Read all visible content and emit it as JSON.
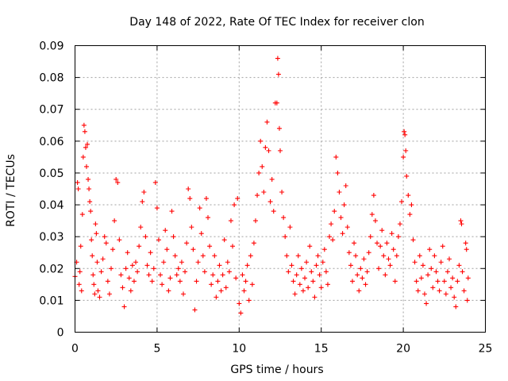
{
  "chart_data": {
    "type": "scatter",
    "title": "Day 148 of 2022, Rate Of TEC Index for receiver clon",
    "xlabel": "GPS time / hours",
    "ylabel": "ROTI / TECUs",
    "xlim": [
      0,
      25
    ],
    "ylim": [
      0,
      0.09
    ],
    "x_ticks": [
      "0",
      "5",
      "10",
      "15",
      "20",
      "25"
    ],
    "y_ticks": [
      "0",
      "0.01",
      "0.02",
      "0.03",
      "0.04",
      "0.05",
      "0.06",
      "0.07",
      "0.08",
      "0.09"
    ],
    "grid": true,
    "legend": "none",
    "marker": "plus",
    "color": "#ff0000",
    "points": [
      [
        0.0,
        0.0175
      ],
      [
        0.1,
        0.022
      ],
      [
        0.15,
        0.047
      ],
      [
        0.2,
        0.045
      ],
      [
        0.25,
        0.015
      ],
      [
        0.3,
        0.019
      ],
      [
        0.35,
        0.027
      ],
      [
        0.4,
        0.013
      ],
      [
        0.45,
        0.037
      ],
      [
        0.5,
        0.055
      ],
      [
        0.55,
        0.065
      ],
      [
        0.6,
        0.063
      ],
      [
        0.65,
        0.058
      ],
      [
        0.7,
        0.052
      ],
      [
        0.75,
        0.059
      ],
      [
        0.8,
        0.048
      ],
      [
        0.85,
        0.045
      ],
      [
        0.9,
        0.041
      ],
      [
        0.95,
        0.038
      ],
      [
        1.0,
        0.029
      ],
      [
        1.05,
        0.024
      ],
      [
        1.1,
        0.018
      ],
      [
        1.15,
        0.015
      ],
      [
        1.2,
        0.012
      ],
      [
        1.25,
        0.034
      ],
      [
        1.3,
        0.031
      ],
      [
        1.35,
        0.022
      ],
      [
        1.4,
        0.013
      ],
      [
        1.5,
        0.011
      ],
      [
        1.6,
        0.019
      ],
      [
        1.7,
        0.023
      ],
      [
        1.8,
        0.03
      ],
      [
        1.9,
        0.028
      ],
      [
        2.0,
        0.016
      ],
      [
        2.1,
        0.012
      ],
      [
        2.2,
        0.02
      ],
      [
        2.3,
        0.026
      ],
      [
        2.4,
        0.035
      ],
      [
        2.5,
        0.048
      ],
      [
        2.6,
        0.047
      ],
      [
        2.7,
        0.029
      ],
      [
        2.8,
        0.018
      ],
      [
        2.9,
        0.014
      ],
      [
        3.0,
        0.008
      ],
      [
        3.1,
        0.02
      ],
      [
        3.2,
        0.025
      ],
      [
        3.3,
        0.017
      ],
      [
        3.4,
        0.013
      ],
      [
        3.5,
        0.021
      ],
      [
        3.6,
        0.016
      ],
      [
        3.7,
        0.022
      ],
      [
        3.8,
        0.019
      ],
      [
        3.9,
        0.027
      ],
      [
        4.0,
        0.033
      ],
      [
        4.1,
        0.041
      ],
      [
        4.2,
        0.044
      ],
      [
        4.3,
        0.03
      ],
      [
        4.4,
        0.021
      ],
      [
        4.5,
        0.018
      ],
      [
        4.6,
        0.025
      ],
      [
        4.7,
        0.016
      ],
      [
        4.8,
        0.02
      ],
      [
        4.9,
        0.047
      ],
      [
        5.0,
        0.039
      ],
      [
        5.1,
        0.029
      ],
      [
        5.2,
        0.018
      ],
      [
        5.3,
        0.015
      ],
      [
        5.4,
        0.022
      ],
      [
        5.5,
        0.032
      ],
      [
        5.6,
        0.026
      ],
      [
        5.7,
        0.013
      ],
      [
        5.8,
        0.017
      ],
      [
        5.9,
        0.038
      ],
      [
        6.0,
        0.03
      ],
      [
        6.1,
        0.024
      ],
      [
        6.2,
        0.018
      ],
      [
        6.3,
        0.02
      ],
      [
        6.4,
        0.016
      ],
      [
        6.5,
        0.022
      ],
      [
        6.6,
        0.012
      ],
      [
        6.7,
        0.019
      ],
      [
        6.8,
        0.028
      ],
      [
        6.9,
        0.045
      ],
      [
        7.0,
        0.042
      ],
      [
        7.1,
        0.033
      ],
      [
        7.2,
        0.026
      ],
      [
        7.3,
        0.007
      ],
      [
        7.4,
        0.016
      ],
      [
        7.5,
        0.022
      ],
      [
        7.6,
        0.039
      ],
      [
        7.7,
        0.031
      ],
      [
        7.8,
        0.024
      ],
      [
        7.9,
        0.019
      ],
      [
        8.0,
        0.042
      ],
      [
        8.1,
        0.036
      ],
      [
        8.2,
        0.027
      ],
      [
        8.3,
        0.015
      ],
      [
        8.4,
        0.018
      ],
      [
        8.5,
        0.024
      ],
      [
        8.6,
        0.011
      ],
      [
        8.7,
        0.016
      ],
      [
        8.8,
        0.021
      ],
      [
        8.9,
        0.013
      ],
      [
        9.0,
        0.018
      ],
      [
        9.1,
        0.029
      ],
      [
        9.2,
        0.014
      ],
      [
        9.3,
        0.022
      ],
      [
        9.4,
        0.019
      ],
      [
        9.5,
        0.035
      ],
      [
        9.6,
        0.027
      ],
      [
        9.7,
        0.04
      ],
      [
        9.8,
        0.017
      ],
      [
        9.9,
        0.042
      ],
      [
        10.0,
        0.009
      ],
      [
        10.1,
        0.006
      ],
      [
        10.2,
        0.018
      ],
      [
        10.3,
        0.013
      ],
      [
        10.4,
        0.016
      ],
      [
        10.5,
        0.021
      ],
      [
        10.6,
        0.01
      ],
      [
        10.7,
        0.024
      ],
      [
        10.8,
        0.015
      ],
      [
        10.9,
        0.028
      ],
      [
        11.0,
        0.035
      ],
      [
        11.1,
        0.043
      ],
      [
        11.2,
        0.05
      ],
      [
        11.3,
        0.06
      ],
      [
        11.4,
        0.052
      ],
      [
        11.5,
        0.044
      ],
      [
        11.6,
        0.058
      ],
      [
        11.7,
        0.066
      ],
      [
        11.8,
        0.057
      ],
      [
        11.9,
        0.041
      ],
      [
        12.0,
        0.048
      ],
      [
        12.1,
        0.038
      ],
      [
        12.2,
        0.072
      ],
      [
        12.3,
        0.072
      ],
      [
        12.35,
        0.086
      ],
      [
        12.4,
        0.081
      ],
      [
        12.45,
        0.064
      ],
      [
        12.5,
        0.057
      ],
      [
        12.6,
        0.044
      ],
      [
        12.7,
        0.036
      ],
      [
        12.8,
        0.03
      ],
      [
        12.9,
        0.024
      ],
      [
        13.0,
        0.019
      ],
      [
        13.1,
        0.033
      ],
      [
        13.2,
        0.021
      ],
      [
        13.3,
        0.016
      ],
      [
        13.4,
        0.012
      ],
      [
        13.5,
        0.018
      ],
      [
        13.6,
        0.024
      ],
      [
        13.7,
        0.015
      ],
      [
        13.8,
        0.02
      ],
      [
        13.9,
        0.013
      ],
      [
        14.0,
        0.017
      ],
      [
        14.1,
        0.022
      ],
      [
        14.2,
        0.014
      ],
      [
        14.3,
        0.027
      ],
      [
        14.4,
        0.019
      ],
      [
        14.5,
        0.016
      ],
      [
        14.6,
        0.011
      ],
      [
        14.7,
        0.021
      ],
      [
        14.8,
        0.024
      ],
      [
        14.9,
        0.018
      ],
      [
        15.0,
        0.014
      ],
      [
        15.1,
        0.022
      ],
      [
        15.2,
        0.026
      ],
      [
        15.3,
        0.019
      ],
      [
        15.4,
        0.015
      ],
      [
        15.5,
        0.03
      ],
      [
        15.6,
        0.034
      ],
      [
        15.7,
        0.029
      ],
      [
        15.8,
        0.038
      ],
      [
        15.9,
        0.055
      ],
      [
        16.0,
        0.05
      ],
      [
        16.1,
        0.044
      ],
      [
        16.2,
        0.036
      ],
      [
        16.3,
        0.031
      ],
      [
        16.4,
        0.04
      ],
      [
        16.5,
        0.046
      ],
      [
        16.6,
        0.033
      ],
      [
        16.7,
        0.025
      ],
      [
        16.8,
        0.021
      ],
      [
        16.9,
        0.016
      ],
      [
        17.0,
        0.028
      ],
      [
        17.1,
        0.024
      ],
      [
        17.2,
        0.018
      ],
      [
        17.3,
        0.013
      ],
      [
        17.4,
        0.02
      ],
      [
        17.5,
        0.017
      ],
      [
        17.6,
        0.023
      ],
      [
        17.7,
        0.015
      ],
      [
        17.8,
        0.019
      ],
      [
        17.9,
        0.025
      ],
      [
        18.0,
        0.03
      ],
      [
        18.1,
        0.037
      ],
      [
        18.2,
        0.043
      ],
      [
        18.3,
        0.035
      ],
      [
        18.4,
        0.028
      ],
      [
        18.5,
        0.02
      ],
      [
        18.6,
        0.027
      ],
      [
        18.7,
        0.032
      ],
      [
        18.8,
        0.024
      ],
      [
        18.9,
        0.018
      ],
      [
        19.0,
        0.028
      ],
      [
        19.1,
        0.023
      ],
      [
        19.2,
        0.021
      ],
      [
        19.3,
        0.031
      ],
      [
        19.4,
        0.026
      ],
      [
        19.5,
        0.016
      ],
      [
        19.6,
        0.024
      ],
      [
        19.7,
        0.03
      ],
      [
        19.8,
        0.034
      ],
      [
        19.9,
        0.041
      ],
      [
        20.0,
        0.055
      ],
      [
        20.05,
        0.063
      ],
      [
        20.1,
        0.062
      ],
      [
        20.15,
        0.057
      ],
      [
        20.2,
        0.049
      ],
      [
        20.3,
        0.043
      ],
      [
        20.4,
        0.037
      ],
      [
        20.5,
        0.04
      ],
      [
        20.6,
        0.029
      ],
      [
        20.7,
        0.022
      ],
      [
        20.8,
        0.016
      ],
      [
        20.9,
        0.013
      ],
      [
        21.0,
        0.024
      ],
      [
        21.1,
        0.017
      ],
      [
        21.2,
        0.021
      ],
      [
        21.3,
        0.012
      ],
      [
        21.4,
        0.009
      ],
      [
        21.5,
        0.018
      ],
      [
        21.6,
        0.026
      ],
      [
        21.7,
        0.02
      ],
      [
        21.8,
        0.014
      ],
      [
        21.9,
        0.024
      ],
      [
        22.0,
        0.019
      ],
      [
        22.1,
        0.016
      ],
      [
        22.2,
        0.013
      ],
      [
        22.3,
        0.022
      ],
      [
        22.4,
        0.027
      ],
      [
        22.5,
        0.016
      ],
      [
        22.6,
        0.012
      ],
      [
        22.7,
        0.019
      ],
      [
        22.8,
        0.023
      ],
      [
        22.9,
        0.014
      ],
      [
        23.0,
        0.017
      ],
      [
        23.1,
        0.011
      ],
      [
        23.2,
        0.008
      ],
      [
        23.3,
        0.016
      ],
      [
        23.4,
        0.021
      ],
      [
        23.5,
        0.035
      ],
      [
        23.55,
        0.034
      ],
      [
        23.6,
        0.019
      ],
      [
        23.7,
        0.013
      ],
      [
        23.8,
        0.028
      ],
      [
        23.85,
        0.026
      ],
      [
        23.9,
        0.01
      ],
      [
        23.95,
        0.017
      ]
    ]
  }
}
